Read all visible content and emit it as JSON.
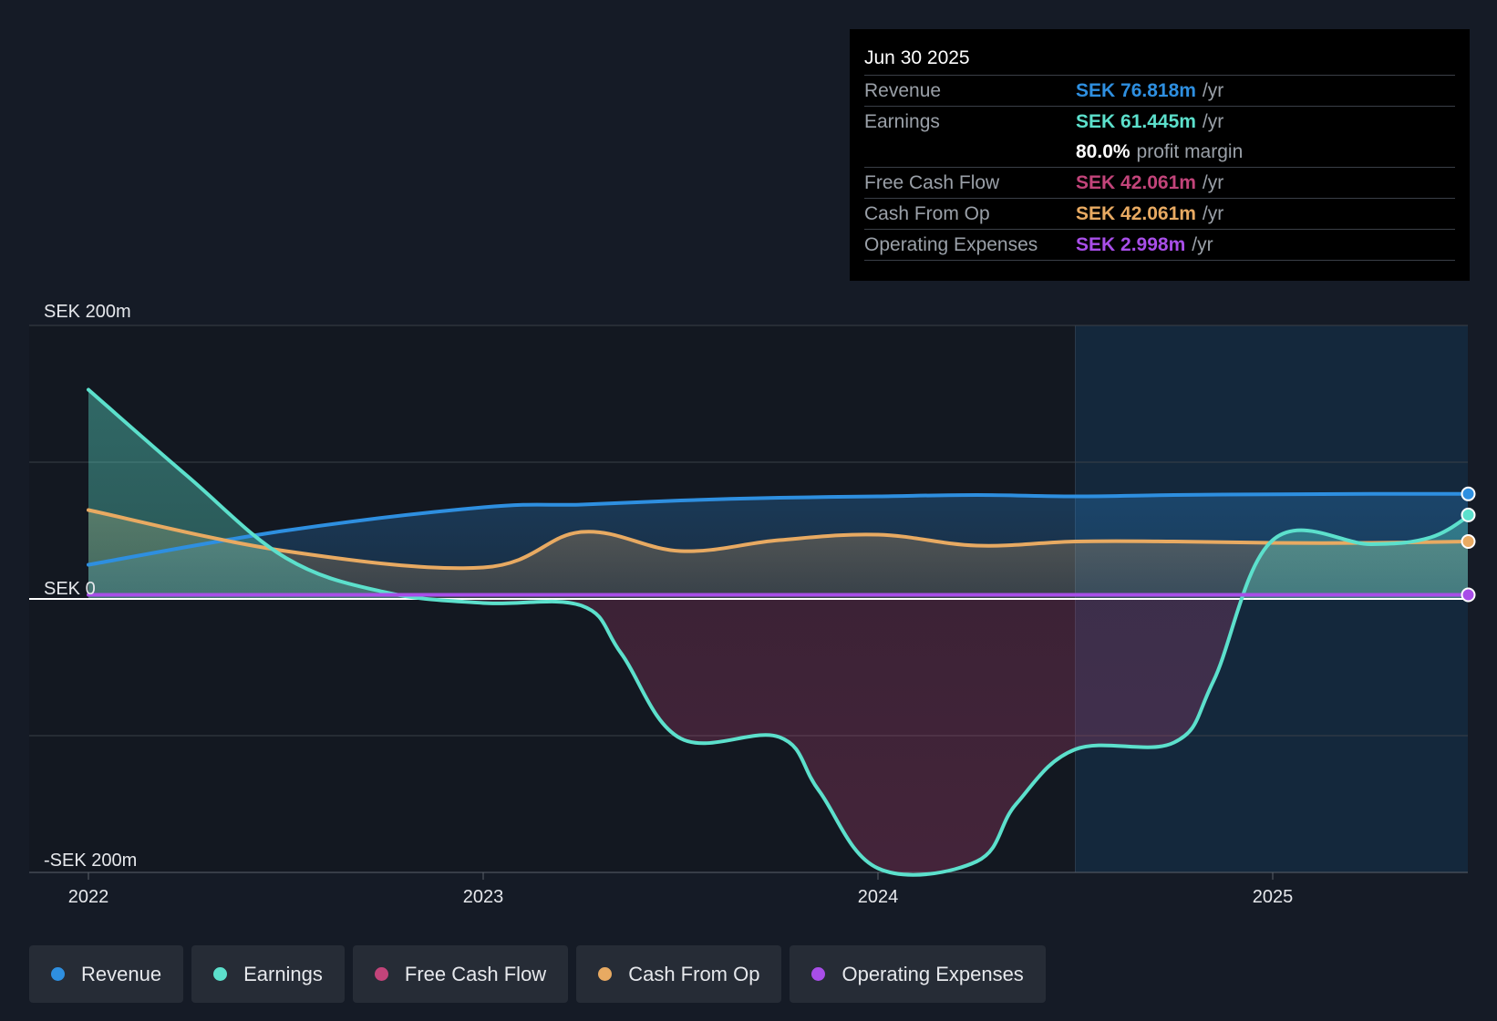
{
  "chart_data": {
    "type": "line",
    "title": "",
    "xlabel": "",
    "ylabel": "",
    "ylim": [
      -200,
      200
    ],
    "y_ticks": [
      {
        "value": 200,
        "label": "SEK 200m"
      },
      {
        "value": 0,
        "label": "SEK 0"
      },
      {
        "value": -200,
        "label": "-SEK 200m"
      }
    ],
    "x_ticks": [
      {
        "value": 2022.0,
        "label": "2022"
      },
      {
        "value": 2023.0,
        "label": "2023"
      },
      {
        "value": 2024.0,
        "label": "2024"
      },
      {
        "value": 2025.0,
        "label": "2025"
      }
    ],
    "xlim": [
      2021.85,
      2025.5
    ],
    "forecast_start": 2024.5,
    "series": [
      {
        "name": "Revenue",
        "color": "#2e8fe0",
        "x": [
          2022.0,
          2022.5,
          2023.0,
          2023.25,
          2023.5,
          2023.75,
          2024.0,
          2024.25,
          2024.5,
          2024.75,
          2025.0,
          2025.25,
          2025.5
        ],
        "values": [
          25,
          50,
          67,
          69,
          72,
          74,
          75,
          76,
          75,
          76,
          76.5,
          76.8,
          76.8
        ]
      },
      {
        "name": "Earnings",
        "color": "#5ce0cc",
        "x": [
          2022.0,
          2022.25,
          2022.5,
          2022.75,
          2023.0,
          2023.25,
          2023.35,
          2023.5,
          2023.75,
          2023.85,
          2024.0,
          2024.25,
          2024.35,
          2024.5,
          2024.75,
          2024.85,
          2025.0,
          2025.25,
          2025.4,
          2025.5
        ],
        "values": [
          153,
          90,
          30,
          5,
          -3,
          -5,
          -40,
          -102,
          -101,
          -140,
          -197,
          -192,
          -150,
          -110,
          -105,
          -60,
          43,
          40,
          45,
          61.4
        ]
      },
      {
        "name": "Free Cash Flow",
        "color": "#c2447a",
        "x": [
          2022.0,
          2025.5
        ],
        "values": [
          42,
          42
        ]
      },
      {
        "name": "Cash From Op",
        "color": "#e8aa62",
        "x": [
          2022.0,
          2022.5,
          2023.0,
          2023.25,
          2023.5,
          2023.75,
          2024.0,
          2024.25,
          2024.5,
          2024.75,
          2025.0,
          2025.25,
          2025.5
        ],
        "values": [
          65,
          35,
          23,
          49,
          35,
          43,
          47,
          39,
          42,
          42,
          41,
          41,
          42
        ]
      },
      {
        "name": "Operating Expenses",
        "color": "#a84ee8",
        "x": [
          2022.0,
          2025.5
        ],
        "values": [
          3,
          3
        ]
      }
    ]
  },
  "tooltip": {
    "date": "Jun 30 2025",
    "rows": {
      "revenue": {
        "label": "Revenue",
        "value": "SEK 76.818m",
        "unit": "/yr",
        "color": "#2e8fe0"
      },
      "earnings": {
        "label": "Earnings",
        "value": "SEK 61.445m",
        "unit": "/yr",
        "color": "#5ce0cc"
      },
      "margin": {
        "value": "80.0%",
        "unit": "profit margin"
      },
      "fcf": {
        "label": "Free Cash Flow",
        "value": "SEK 42.061m",
        "unit": "/yr",
        "color": "#c2447a"
      },
      "cfo": {
        "label": "Cash From Op",
        "value": "SEK 42.061m",
        "unit": "/yr",
        "color": "#e8aa62"
      },
      "opex": {
        "label": "Operating Expenses",
        "value": "SEK 2.998m",
        "unit": "/yr",
        "color": "#a84ee8"
      }
    }
  },
  "legend": [
    {
      "label": "Revenue",
      "color": "#2e8fe0"
    },
    {
      "label": "Earnings",
      "color": "#5ce0cc"
    },
    {
      "label": "Free Cash Flow",
      "color": "#c2447a"
    },
    {
      "label": "Cash From Op",
      "color": "#e8aa62"
    },
    {
      "label": "Operating Expenses",
      "color": "#a84ee8"
    }
  ]
}
